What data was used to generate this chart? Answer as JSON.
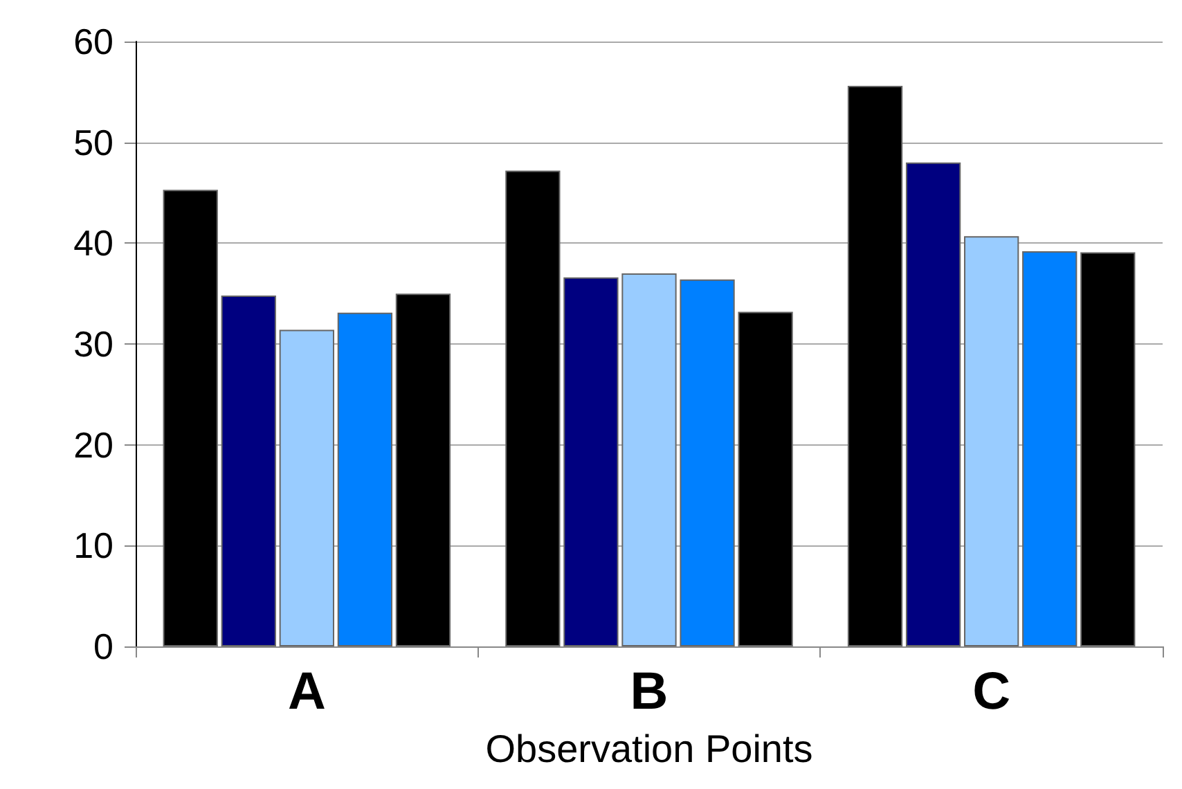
{
  "chart_data": {
    "type": "bar",
    "xlabel": "Observation Points",
    "categories": [
      "A",
      "B",
      "C"
    ],
    "series": [
      {
        "color": "#000000",
        "values": [
          45.3,
          47.2,
          55.6
        ]
      },
      {
        "color": "#000080",
        "values": [
          34.8,
          36.6,
          48.0
        ]
      },
      {
        "color": "#99ccff",
        "values": [
          31.4,
          37.0,
          40.7
        ]
      },
      {
        "color": "#0080ff",
        "values": [
          33.1,
          36.4,
          39.2
        ]
      },
      {
        "color": "#000000",
        "values": [
          35.0,
          33.2,
          39.1
        ]
      }
    ],
    "ylim": [
      0,
      60
    ],
    "yticks": [
      0,
      10,
      20,
      30,
      40,
      50,
      60
    ],
    "grid": "y"
  }
}
